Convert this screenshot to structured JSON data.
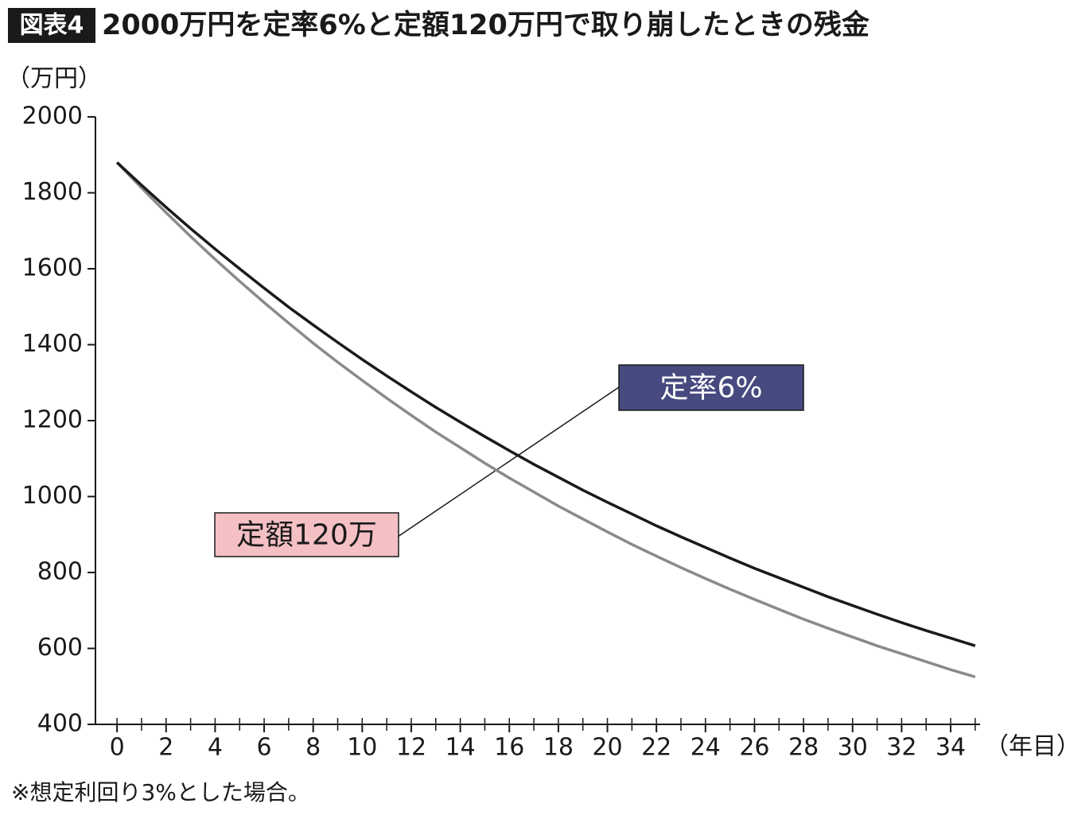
{
  "chart_data": {
    "type": "line",
    "badge": "図表4",
    "title": "2000万円を定率6%と定額120万円で取り崩したときの残金",
    "y_label": "（万円）",
    "x_label": "（年目）",
    "note": "※想定利回り3%とした場合。",
    "x": [
      0,
      1,
      2,
      3,
      4,
      5,
      6,
      7,
      8,
      9,
      10,
      11,
      12,
      13,
      14,
      15,
      16,
      17,
      18,
      19,
      20,
      21,
      22,
      23,
      24,
      25,
      26,
      27,
      28,
      29,
      30,
      31,
      32,
      33,
      34,
      35
    ],
    "series": [
      {
        "name": "定率6%",
        "color": "#1a1a1a",
        "label_color": "#474a7f",
        "label_text_color": "#ffffff",
        "values": [
          1880,
          1820,
          1762,
          1706,
          1652,
          1600,
          1549,
          1499,
          1452,
          1406,
          1361,
          1318,
          1276,
          1235,
          1196,
          1158,
          1121,
          1085,
          1051,
          1017,
          985,
          954,
          923,
          894,
          866,
          838,
          811,
          786,
          761,
          736,
          713,
          690,
          668,
          647,
          627,
          607
        ]
      },
      {
        "name": "定額120万",
        "color": "#8a8a8a",
        "label_color": "#f4c0c4",
        "label_text_color": "#1a1a1a",
        "values": [
          1880,
          1813,
          1748,
          1685,
          1625,
          1567,
          1511,
          1457,
          1404,
          1354,
          1306,
          1259,
          1214,
          1170,
          1129,
          1088,
          1049,
          1012,
          975,
          941,
          907,
          874,
          843,
          813,
          784,
          756,
          729,
          703,
          677,
          653,
          630,
          607,
          586,
          565,
          544,
          525
        ]
      }
    ],
    "xlim": [
      -0.88,
      35.2
    ],
    "xticks": [
      0,
      2,
      4,
      6,
      8,
      10,
      12,
      14,
      16,
      18,
      20,
      22,
      24,
      26,
      28,
      30,
      32,
      34
    ],
    "ylim": [
      400,
      2000
    ],
    "yticks": [
      400,
      600,
      800,
      1000,
      1200,
      1400,
      1600,
      1800,
      2000
    ]
  }
}
